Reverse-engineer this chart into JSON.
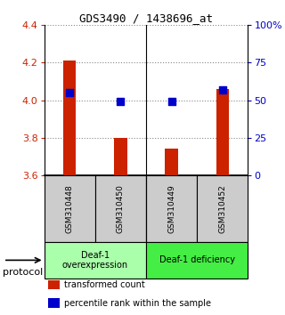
{
  "title": "GDS3490 / 1438696_at",
  "samples": [
    "GSM310448",
    "GSM310450",
    "GSM310449",
    "GSM310452"
  ],
  "transformed_counts": [
    4.21,
    3.8,
    3.74,
    4.06
  ],
  "percentile_ranks": [
    55,
    49,
    49,
    57
  ],
  "ylim_left": [
    3.6,
    4.4
  ],
  "yticks_left": [
    3.6,
    3.8,
    4.0,
    4.2,
    4.4
  ],
  "ylim_right": [
    0,
    100
  ],
  "yticks_right": [
    0,
    25,
    50,
    75,
    100
  ],
  "ytick_right_labels": [
    "0",
    "25",
    "50",
    "75",
    "100%"
  ],
  "bar_color": "#cc2200",
  "dot_color": "#0000cc",
  "background_color": "#ffffff",
  "plot_bg_color": "#ffffff",
  "groups": [
    {
      "label": "Deaf-1\noverexpression",
      "color": "#aaffaa"
    },
    {
      "label": "Deaf-1 deficiency",
      "color": "#44ee44"
    }
  ],
  "sample_bg_color": "#cccccc",
  "tick_color_left": "#cc2200",
  "tick_color_right": "#0000cc",
  "protocol_label": "protocol",
  "legend_items": [
    {
      "color": "#cc2200",
      "label": "transformed count"
    },
    {
      "color": "#0000cc",
      "label": "percentile rank within the sample"
    }
  ]
}
